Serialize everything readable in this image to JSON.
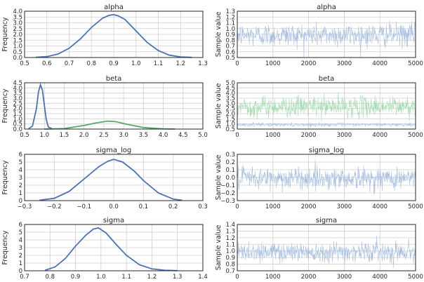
{
  "colors": {
    "blue": "#4c72b0",
    "green": "#55a868",
    "trace_blue": "#a8bfe0",
    "trace_green": "#a6dcb3"
  },
  "chart_data": [
    {
      "type": "line",
      "title": "alpha",
      "xlabel": "",
      "ylabel": "Frequency",
      "xlim": [
        0.5,
        1.3
      ],
      "ylim": [
        0.0,
        4.0
      ],
      "grid": true,
      "legend": "none",
      "xticks": [
        "0.5",
        "0.6",
        "0.7",
        "0.8",
        "0.9",
        "1.0",
        "1.1",
        "1.2",
        "1.3"
      ],
      "yticks": [
        "0.0",
        "0.5",
        "1.0",
        "1.5",
        "2.0",
        "2.5",
        "3.0",
        "3.5",
        "4.0"
      ],
      "series": [
        {
          "color": "#4c72b0",
          "x": [
            0.55,
            0.6,
            0.65,
            0.7,
            0.75,
            0.8,
            0.85,
            0.88,
            0.9,
            0.92,
            0.95,
            1.0,
            1.05,
            1.1,
            1.15,
            1.2,
            1.25
          ],
          "y": [
            0.02,
            0.08,
            0.3,
            0.8,
            1.6,
            2.6,
            3.4,
            3.65,
            3.7,
            3.6,
            3.3,
            2.3,
            1.3,
            0.6,
            0.2,
            0.05,
            0.01
          ]
        }
      ]
    },
    {
      "type": "line",
      "title": "alpha",
      "xlabel": "",
      "ylabel": "Sample value",
      "xlim": [
        0,
        5000
      ],
      "ylim": [
        0.5,
        1.3
      ],
      "grid": true,
      "legend": "none",
      "xticks": [
        "0",
        "1000",
        "2000",
        "3000",
        "4000",
        "5000"
      ],
      "yticks": [
        "0.5",
        "0.6",
        "0.7",
        "0.8",
        "0.9",
        "1.0",
        "1.1",
        "1.2",
        "1.3"
      ],
      "series": [
        {
          "color": "#a8bfe0",
          "trace_mean": 0.89,
          "trace_sd": 0.1,
          "n": 5000
        }
      ]
    },
    {
      "type": "line",
      "title": "beta",
      "xlabel": "",
      "ylabel": "Frequency",
      "xlim": [
        0.5,
        5.0
      ],
      "ylim": [
        0.0,
        4.5
      ],
      "grid": true,
      "legend": "none",
      "xticks": [
        "0.5",
        "1.0",
        "1.5",
        "2.0",
        "2.5",
        "3.0",
        "3.5",
        "4.0",
        "4.5",
        "5.0"
      ],
      "yticks": [
        "0.0",
        "0.5",
        "1.0",
        "1.5",
        "2.0",
        "2.5",
        "3.0",
        "3.5",
        "4.0",
        "4.5"
      ],
      "series": [
        {
          "color": "#4c72b0",
          "x": [
            0.6,
            0.7,
            0.8,
            0.85,
            0.9,
            0.95,
            1.0,
            1.05,
            1.1,
            1.2
          ],
          "y": [
            0.02,
            0.3,
            2.0,
            3.6,
            4.3,
            3.8,
            2.3,
            0.9,
            0.2,
            0.02
          ]
        },
        {
          "color": "#55a868",
          "x": [
            1.0,
            1.5,
            2.0,
            2.3,
            2.6,
            2.8,
            3.1,
            3.5,
            4.0,
            4.3
          ],
          "y": [
            0.0,
            0.05,
            0.35,
            0.6,
            0.78,
            0.72,
            0.45,
            0.15,
            0.02,
            0.0
          ]
        }
      ]
    },
    {
      "type": "line",
      "title": "beta",
      "xlabel": "",
      "ylabel": "Sample value",
      "xlim": [
        0,
        5000
      ],
      "ylim": [
        0.5,
        5.0
      ],
      "grid": true,
      "legend": "none",
      "xticks": [
        "0",
        "1000",
        "2000",
        "3000",
        "4000",
        "5000"
      ],
      "yticks": [
        "0.5",
        "1.0",
        "1.5",
        "2.0",
        "2.5",
        "3.0",
        "3.5",
        "4.0",
        "4.5",
        "5.0"
      ],
      "series": [
        {
          "color": "#a6dcb3",
          "trace_mean": 2.7,
          "trace_sd": 0.5,
          "n": 5000
        },
        {
          "color": "#a8bfe0",
          "trace_mean": 0.93,
          "trace_sd": 0.08,
          "n": 5000
        }
      ]
    },
    {
      "type": "line",
      "title": "sigma_log",
      "xlabel": "",
      "ylabel": "Frequency",
      "xlim": [
        -0.3,
        0.3
      ],
      "ylim": [
        0,
        6
      ],
      "grid": true,
      "legend": "none",
      "xticks": [
        "−0.3",
        "−0.2",
        "−0.1",
        "0.0",
        "0.1",
        "0.2",
        "0.3"
      ],
      "yticks": [
        "0",
        "1",
        "2",
        "3",
        "4",
        "5",
        "6"
      ],
      "series": [
        {
          "color": "#4c72b0",
          "x": [
            -0.25,
            -0.2,
            -0.15,
            -0.1,
            -0.05,
            -0.02,
            0.0,
            0.03,
            0.07,
            0.1,
            0.15,
            0.2,
            0.23
          ],
          "y": [
            0.05,
            0.3,
            1.2,
            2.8,
            4.4,
            5.1,
            5.35,
            5.0,
            3.8,
            2.6,
            1.0,
            0.2,
            0.05
          ]
        }
      ]
    },
    {
      "type": "line",
      "title": "sigma_log",
      "xlabel": "",
      "ylabel": "Sample value",
      "xlim": [
        0,
        5000
      ],
      "ylim": [
        -0.3,
        0.3
      ],
      "grid": true,
      "legend": "none",
      "xticks": [
        "0",
        "1000",
        "2000",
        "3000",
        "4000",
        "5000"
      ],
      "yticks": [
        "−0.3",
        "−0.2",
        "−0.1",
        "0.0",
        "0.1",
        "0.2",
        "0.3"
      ],
      "series": [
        {
          "color": "#a8bfe0",
          "trace_mean": -0.01,
          "trace_sd": 0.07,
          "n": 5000
        }
      ]
    },
    {
      "type": "line",
      "title": "sigma",
      "xlabel": "",
      "ylabel": "Frequency",
      "xlim": [
        0.7,
        1.4
      ],
      "ylim": [
        0,
        6
      ],
      "grid": true,
      "legend": "none",
      "xticks": [
        "0.7",
        "0.8",
        "0.9",
        "1.0",
        "1.1",
        "1.2",
        "1.3",
        "1.4"
      ],
      "yticks": [
        "0",
        "1",
        "2",
        "3",
        "4",
        "5",
        "6"
      ],
      "series": [
        {
          "color": "#4c72b0",
          "x": [
            0.78,
            0.82,
            0.86,
            0.9,
            0.94,
            0.97,
            0.99,
            1.02,
            1.06,
            1.1,
            1.15,
            1.2,
            1.25,
            1.3
          ],
          "y": [
            0.05,
            0.5,
            1.6,
            3.2,
            4.6,
            5.4,
            5.55,
            4.9,
            3.4,
            2.0,
            0.8,
            0.25,
            0.06,
            0.02
          ]
        }
      ]
    },
    {
      "type": "line",
      "title": "sigma",
      "xlabel": "",
      "ylabel": "Sample value",
      "xlim": [
        0,
        5000
      ],
      "ylim": [
        0.7,
        1.4
      ],
      "grid": true,
      "legend": "none",
      "xticks": [
        "0",
        "1000",
        "2000",
        "3000",
        "4000",
        "5000"
      ],
      "yticks": [
        "0.7",
        "0.8",
        "0.9",
        "1.0",
        "1.1",
        "1.2",
        "1.3",
        "1.4"
      ],
      "series": [
        {
          "color": "#a8bfe0",
          "trace_mean": 0.99,
          "trace_sd": 0.075,
          "n": 5000
        }
      ]
    }
  ]
}
